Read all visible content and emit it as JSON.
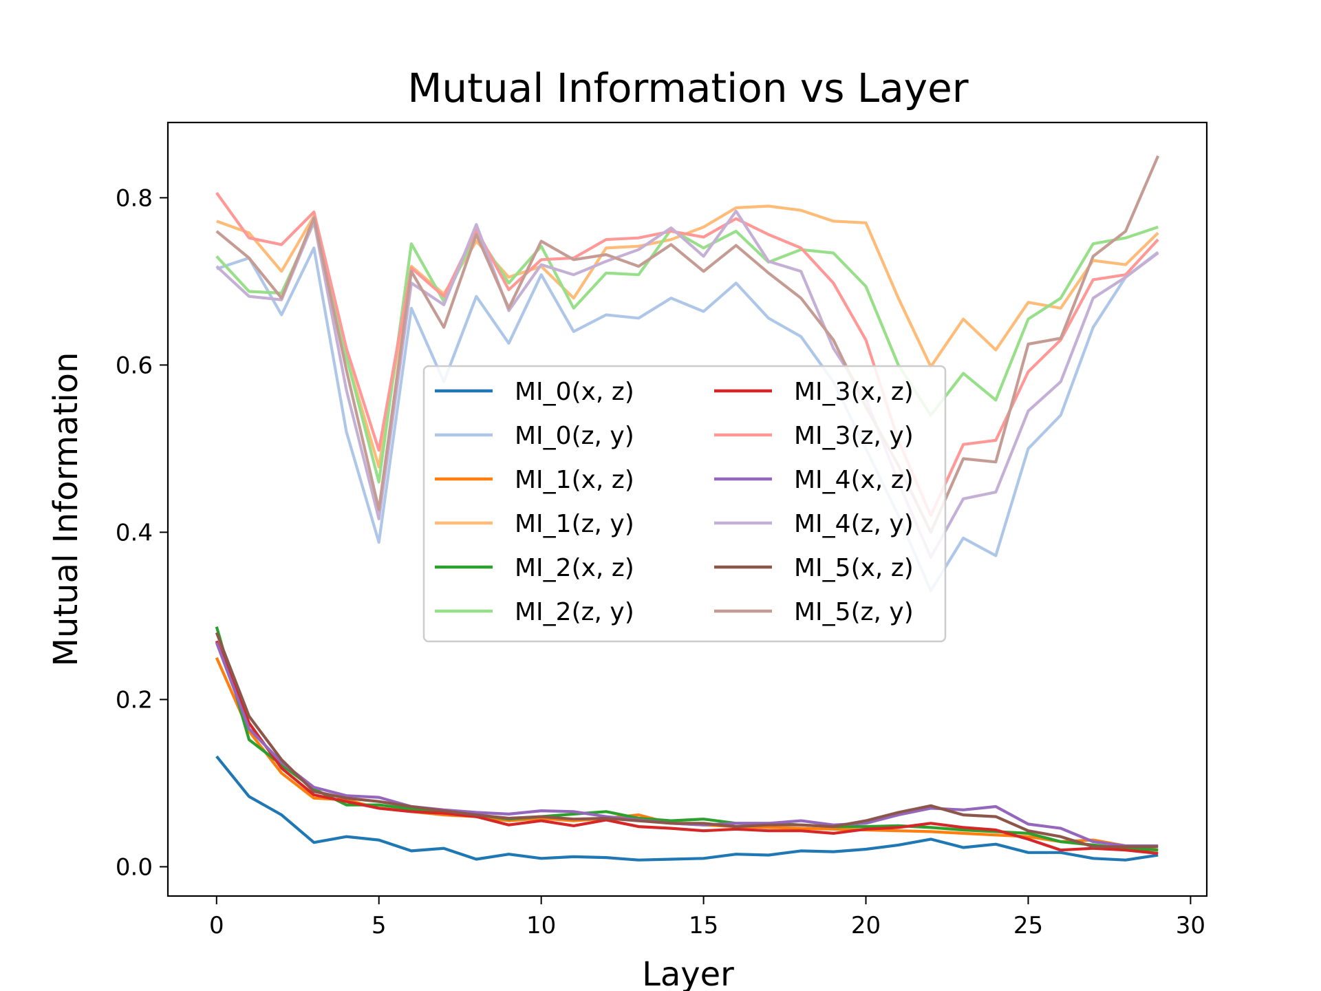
{
  "chart_data": {
    "type": "line",
    "title": "Mutual Information vs Layer",
    "xlabel": "Layer",
    "ylabel": "Mutual Information",
    "xlim": [
      -1.5,
      30.5
    ],
    "ylim": [
      -0.035,
      0.89
    ],
    "xticks": [
      0,
      5,
      10,
      15,
      20,
      25,
      30
    ],
    "yticks": [
      0.0,
      0.2,
      0.4,
      0.6,
      0.8
    ],
    "xtick_labels": [
      "0",
      "5",
      "10",
      "15",
      "20",
      "25",
      "30"
    ],
    "ytick_labels": [
      "0.0",
      "0.2",
      "0.4",
      "0.6",
      "0.8"
    ],
    "grid": false,
    "legend_position": "center",
    "legend_columns": 2,
    "x": [
      0,
      1,
      2,
      3,
      4,
      5,
      6,
      7,
      8,
      9,
      10,
      11,
      12,
      13,
      14,
      15,
      16,
      17,
      18,
      19,
      20,
      21,
      22,
      23,
      24,
      25,
      26,
      27,
      28,
      29
    ],
    "series": [
      {
        "name": "MI_0(x, z)",
        "color": "#1f77b4",
        "values": [
          0.132,
          0.084,
          0.062,
          0.029,
          0.036,
          0.032,
          0.019,
          0.022,
          0.009,
          0.015,
          0.01,
          0.012,
          0.011,
          0.008,
          0.009,
          0.01,
          0.015,
          0.014,
          0.019,
          0.018,
          0.021,
          0.026,
          0.033,
          0.023,
          0.027,
          0.017,
          0.017,
          0.01,
          0.008,
          0.014
        ]
      },
      {
        "name": "MI_0(z, y)",
        "color": "#aec7e8",
        "values": [
          0.715,
          0.728,
          0.66,
          0.74,
          0.52,
          0.388,
          0.668,
          0.58,
          0.682,
          0.626,
          0.708,
          0.64,
          0.66,
          0.656,
          0.68,
          0.664,
          0.698,
          0.656,
          0.634,
          0.58,
          0.5,
          0.42,
          0.33,
          0.393,
          0.372,
          0.5,
          0.54,
          0.645,
          0.705,
          0.735
        ]
      },
      {
        "name": "MI_1(x, z)",
        "color": "#ff7f0e",
        "values": [
          0.25,
          0.162,
          0.112,
          0.082,
          0.08,
          0.07,
          0.066,
          0.062,
          0.06,
          0.055,
          0.058,
          0.055,
          0.058,
          0.062,
          0.052,
          0.05,
          0.048,
          0.047,
          0.046,
          0.045,
          0.044,
          0.043,
          0.042,
          0.04,
          0.038,
          0.036,
          0.03,
          0.032,
          0.025,
          0.02
        ]
      },
      {
        "name": "MI_1(z, y)",
        "color": "#ffbb78",
        "values": [
          0.772,
          0.758,
          0.712,
          0.778,
          0.61,
          0.478,
          0.718,
          0.685,
          0.748,
          0.705,
          0.718,
          0.68,
          0.74,
          0.742,
          0.75,
          0.765,
          0.788,
          0.79,
          0.785,
          0.772,
          0.77,
          0.68,
          0.598,
          0.655,
          0.618,
          0.675,
          0.668,
          0.725,
          0.72,
          0.758
        ]
      },
      {
        "name": "MI_2(x, z)",
        "color": "#2ca02c",
        "values": [
          0.287,
          0.152,
          0.122,
          0.093,
          0.074,
          0.074,
          0.069,
          0.065,
          0.062,
          0.057,
          0.06,
          0.063,
          0.066,
          0.058,
          0.055,
          0.057,
          0.052,
          0.052,
          0.05,
          0.048,
          0.048,
          0.049,
          0.047,
          0.044,
          0.042,
          0.04,
          0.03,
          0.026,
          0.022,
          0.02
        ]
      },
      {
        "name": "MI_2(z, y)",
        "color": "#98df8a",
        "values": [
          0.73,
          0.688,
          0.686,
          0.77,
          0.61,
          0.46,
          0.745,
          0.676,
          0.758,
          0.698,
          0.742,
          0.668,
          0.71,
          0.708,
          0.762,
          0.74,
          0.76,
          0.723,
          0.738,
          0.734,
          0.694,
          0.6,
          0.54,
          0.59,
          0.558,
          0.655,
          0.68,
          0.745,
          0.752,
          0.765
        ]
      },
      {
        "name": "MI_3(x, z)",
        "color": "#d62728",
        "values": [
          0.27,
          0.172,
          0.118,
          0.086,
          0.078,
          0.07,
          0.066,
          0.064,
          0.06,
          0.05,
          0.055,
          0.049,
          0.056,
          0.048,
          0.046,
          0.043,
          0.045,
          0.043,
          0.043,
          0.04,
          0.045,
          0.047,
          0.052,
          0.047,
          0.044,
          0.033,
          0.02,
          0.022,
          0.02,
          0.016
        ]
      },
      {
        "name": "MI_3(z, y)",
        "color": "#ff9896",
        "values": [
          0.806,
          0.752,
          0.744,
          0.783,
          0.62,
          0.498,
          0.716,
          0.682,
          0.762,
          0.69,
          0.726,
          0.728,
          0.75,
          0.752,
          0.76,
          0.753,
          0.775,
          0.756,
          0.74,
          0.698,
          0.63,
          0.51,
          0.42,
          0.505,
          0.51,
          0.592,
          0.63,
          0.702,
          0.708,
          0.75
        ]
      },
      {
        "name": "MI_4(x, z)",
        "color": "#9467bd",
        "values": [
          0.268,
          0.165,
          0.125,
          0.095,
          0.085,
          0.083,
          0.072,
          0.068,
          0.065,
          0.063,
          0.067,
          0.066,
          0.06,
          0.056,
          0.052,
          0.05,
          0.052,
          0.052,
          0.055,
          0.05,
          0.052,
          0.062,
          0.07,
          0.068,
          0.072,
          0.051,
          0.046,
          0.03,
          0.025,
          0.025
        ]
      },
      {
        "name": "MI_4(z, y)",
        "color": "#c5b0d5",
        "values": [
          0.718,
          0.682,
          0.678,
          0.772,
          0.57,
          0.416,
          0.698,
          0.672,
          0.768,
          0.665,
          0.72,
          0.708,
          0.724,
          0.738,
          0.764,
          0.73,
          0.784,
          0.724,
          0.712,
          0.62,
          0.56,
          0.46,
          0.37,
          0.44,
          0.448,
          0.545,
          0.58,
          0.68,
          0.705,
          0.734
        ]
      },
      {
        "name": "MI_5(x, z)",
        "color": "#8c564b",
        "values": [
          0.28,
          0.18,
          0.128,
          0.09,
          0.082,
          0.078,
          0.072,
          0.067,
          0.062,
          0.058,
          0.06,
          0.057,
          0.058,
          0.055,
          0.052,
          0.052,
          0.048,
          0.05,
          0.05,
          0.048,
          0.055,
          0.065,
          0.073,
          0.062,
          0.06,
          0.043,
          0.036,
          0.024,
          0.024,
          0.024
        ]
      },
      {
        "name": "MI_5(z, y)",
        "color": "#c49c94",
        "values": [
          0.76,
          0.728,
          0.68,
          0.776,
          0.594,
          0.427,
          0.712,
          0.645,
          0.756,
          0.668,
          0.748,
          0.726,
          0.732,
          0.718,
          0.744,
          0.712,
          0.743,
          0.71,
          0.68,
          0.63,
          0.55,
          0.48,
          0.4,
          0.488,
          0.484,
          0.625,
          0.632,
          0.73,
          0.76,
          0.85
        ]
      }
    ]
  }
}
